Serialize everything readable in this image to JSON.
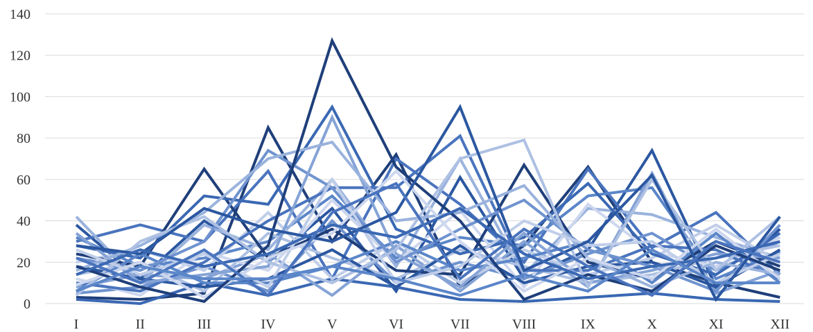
{
  "chart_data": {
    "type": "line",
    "title": "",
    "xlabel": "",
    "ylabel": "",
    "categories": [
      "I",
      "II",
      "III",
      "IV",
      "V",
      "VI",
      "VII",
      "VIII",
      "IX",
      "X",
      "XI",
      "XII"
    ],
    "ylim": [
      0,
      140
    ],
    "yticks": [
      "0",
      "20",
      "40",
      "60",
      "80",
      "100",
      "120",
      "140"
    ],
    "grid": true,
    "legend": "none",
    "palette": [
      "#1f3f7a",
      "#2b57a0",
      "#3a68b3",
      "#4a74be",
      "#5b86c9",
      "#6f93cf",
      "#85a3d6",
      "#9ab3dd",
      "#aec1e3",
      "#c0cee9",
      "#cdd7ee"
    ],
    "series": [
      {
        "values": [
          3,
          2,
          5,
          85,
          30,
          72,
          8,
          28,
          66,
          20,
          10,
          3
        ]
      },
      {
        "values": [
          38,
          12,
          40,
          20,
          46,
          6,
          61,
          12,
          26,
          74,
          8,
          36
        ]
      },
      {
        "values": [
          2,
          0,
          10,
          4,
          12,
          8,
          2,
          1,
          3,
          5,
          2,
          1
        ]
      },
      {
        "values": [
          30,
          38,
          30,
          64,
          12,
          70,
          48,
          20,
          65,
          27,
          44,
          14
        ]
      },
      {
        "values": [
          32,
          18,
          22,
          30,
          52,
          22,
          32,
          28,
          52,
          56,
          12,
          25
        ]
      },
      {
        "values": [
          5,
          8,
          18,
          6,
          40,
          10,
          20,
          12,
          24,
          34,
          16,
          30
        ]
      },
      {
        "values": [
          8,
          14,
          12,
          24,
          4,
          28,
          6,
          30,
          8,
          63,
          5,
          16
        ]
      },
      {
        "values": [
          42,
          10,
          38,
          26,
          60,
          18,
          70,
          14,
          46,
          43,
          32,
          22
        ]
      },
      {
        "values": [
          14,
          20,
          6,
          34,
          22,
          12,
          26,
          18,
          10,
          14,
          22,
          28
        ]
      },
      {
        "values": [
          20,
          26,
          16,
          44,
          12,
          30,
          10,
          26,
          14,
          22,
          38,
          20
        ]
      },
      {
        "values": [
          12,
          4,
          25,
          16,
          50,
          20,
          45,
          8,
          48,
          25,
          18,
          32
        ]
      },
      {
        "values": [
          24,
          18,
          65,
          22,
          36,
          16,
          14,
          67,
          20,
          12,
          30,
          18
        ]
      },
      {
        "values": [
          18,
          12,
          8,
          12,
          26,
          8,
          28,
          10,
          18,
          20,
          8,
          26
        ]
      },
      {
        "values": [
          28,
          22,
          52,
          48,
          95,
          36,
          24,
          32,
          58,
          24,
          14,
          34
        ]
      },
      {
        "values": [
          10,
          6,
          20,
          40,
          56,
          56,
          81,
          16,
          16,
          28,
          26,
          12
        ]
      },
      {
        "values": [
          6,
          24,
          10,
          10,
          18,
          30,
          16,
          22,
          30,
          10,
          34,
          10
        ]
      },
      {
        "values": [
          22,
          16,
          30,
          74,
          56,
          20,
          36,
          50,
          26,
          18,
          6,
          38
        ]
      },
      {
        "values": [
          34,
          10,
          14,
          18,
          90,
          24,
          8,
          34,
          10,
          16,
          24,
          22
        ]
      },
      {
        "values": [
          16,
          28,
          44,
          70,
          78,
          40,
          44,
          57,
          22,
          8,
          20,
          14
        ]
      },
      {
        "values": [
          4,
          30,
          42,
          20,
          10,
          26,
          70,
          79,
          8,
          60,
          16,
          42
        ]
      },
      {
        "values": [
          26,
          14,
          24,
          8,
          60,
          10,
          18,
          40,
          28,
          30,
          10,
          24
        ]
      },
      {
        "values": [
          9,
          20,
          3,
          22,
          34,
          64,
          30,
          6,
          22,
          12,
          36,
          12
        ]
      },
      {
        "values": [
          18,
          8,
          1,
          28,
          127,
          66,
          40,
          2,
          14,
          6,
          28,
          16
        ]
      },
      {
        "values": [
          28,
          24,
          46,
          36,
          30,
          44,
          95,
          16,
          30,
          62,
          2,
          42
        ]
      },
      {
        "values": [
          14,
          26,
          18,
          24,
          38,
          32,
          46,
          24,
          12,
          18,
          22,
          30
        ]
      },
      {
        "values": [
          22,
          10,
          26,
          4,
          44,
          58,
          12,
          36,
          18,
          4,
          30,
          20
        ]
      },
      {
        "values": [
          6,
          18,
          12,
          12,
          18,
          12,
          4,
          14,
          6,
          26,
          10,
          10
        ]
      }
    ]
  }
}
